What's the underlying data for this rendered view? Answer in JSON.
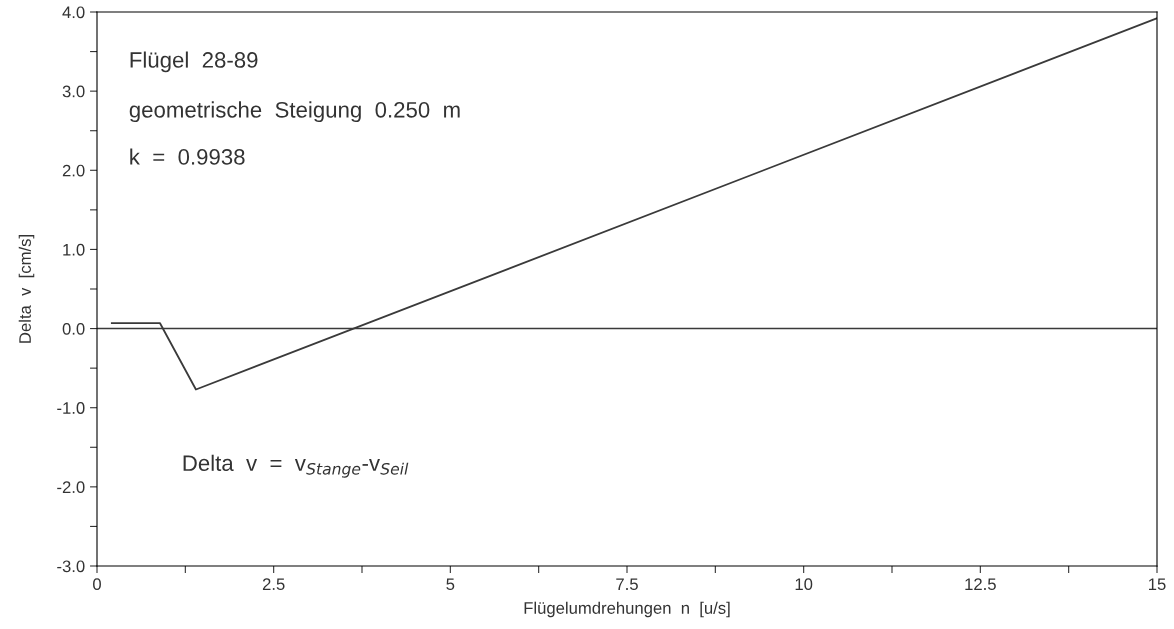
{
  "chart_data": {
    "type": "line",
    "xlabel": "Flügelumdrehungen  n  [u/s]",
    "ylabel": "Delta  v  [cm/s]",
    "x": [
      0.21,
      0.89,
      1.4,
      15
    ],
    "series": [
      {
        "color": "#3a3a3a",
        "values": [
          0.07,
          0.07,
          -0.77,
          3.92
        ]
      }
    ],
    "xlim": [
      0,
      15
    ],
    "ylim": [
      -3.0,
      4.0
    ],
    "xticks": [
      {
        "value": 0,
        "label": "0"
      },
      {
        "value": 1.25,
        "label": null
      },
      {
        "value": 2.5,
        "label": "2.5"
      },
      {
        "value": 3.75,
        "label": null
      },
      {
        "value": 5,
        "label": "5"
      },
      {
        "value": 6.25,
        "label": null
      },
      {
        "value": 7.5,
        "label": "7.5"
      },
      {
        "value": 8.75,
        "label": null
      },
      {
        "value": 10,
        "label": "10"
      },
      {
        "value": 11.25,
        "label": null
      },
      {
        "value": 12.5,
        "label": "12.5"
      },
      {
        "value": 13.75,
        "label": null
      },
      {
        "value": 15,
        "label": "15"
      }
    ],
    "yticks": [
      {
        "value": -3,
        "label": "-3.0"
      },
      {
        "value": -2.5,
        "label": null
      },
      {
        "value": -2,
        "label": "-2.0"
      },
      {
        "value": -1.5,
        "label": null
      },
      {
        "value": -1,
        "label": "-1.0"
      },
      {
        "value": -0.5,
        "label": null
      },
      {
        "value": 0,
        "label": "0.0"
      },
      {
        "value": 0.5,
        "label": null
      },
      {
        "value": 1,
        "label": "1.0"
      },
      {
        "value": 1.5,
        "label": null
      },
      {
        "value": 2,
        "label": "2.0"
      },
      {
        "value": 2.5,
        "label": null
      },
      {
        "value": 3,
        "label": "3.0"
      },
      {
        "value": 3.5,
        "label": null
      },
      {
        "value": 4,
        "label": "4.0"
      }
    ],
    "ref_lines": [
      {
        "axis": "y",
        "value": 0,
        "color": "#3a3a3a"
      }
    ],
    "annotations": [
      "Flügel  28-89",
      "geometrische  Steigung  0.250  m",
      "k  =  0.9938",
      "Delta  v  =  v$_{Stange}$-v$_{Seil}$"
    ],
    "grid": false,
    "legend": false,
    "marker": "none",
    "line_style": "solid"
  }
}
